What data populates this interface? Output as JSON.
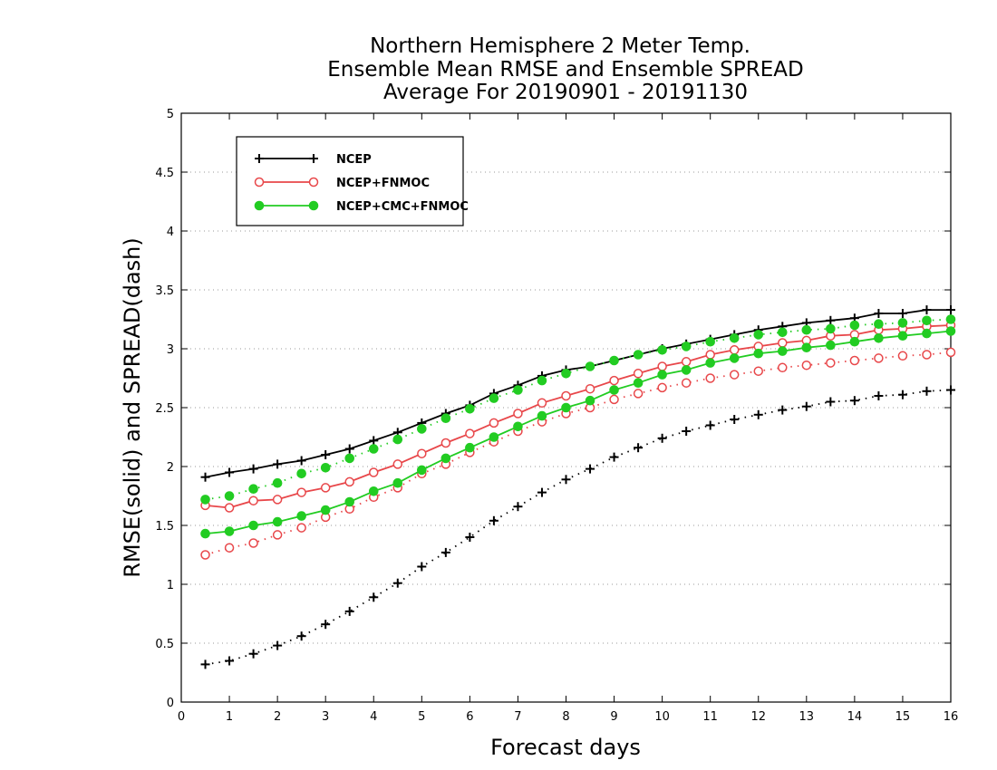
{
  "chart_data": {
    "type": "line",
    "title_lines": [
      "Northern Hemisphere 2 Meter Temp.",
      "Ensemble Mean RMSE and Ensemble SPREAD",
      "Average For 20190901 - 20191130"
    ],
    "xlabel": "Forecast days",
    "ylabel": "RMSE(solid) and SPREAD(dash)",
    "xlim": [
      0,
      16
    ],
    "ylim": [
      0,
      5
    ],
    "xticks": [
      "0",
      "1",
      "2",
      "3",
      "4",
      "5",
      "6",
      "7",
      "8",
      "9",
      "10",
      "11",
      "12",
      "13",
      "14",
      "15",
      "16"
    ],
    "yticks": [
      "0",
      "0.5",
      "1",
      "1.5",
      "2",
      "2.5",
      "3",
      "3.5",
      "4",
      "4.5",
      "5"
    ],
    "grid": "horizontal-dotted",
    "legend_position": "top-left",
    "x": [
      0.5,
      1,
      1.5,
      2,
      2.5,
      3,
      3.5,
      4,
      4.5,
      5,
      5.5,
      6,
      6.5,
      7,
      7.5,
      8,
      8.5,
      9,
      9.5,
      10,
      10.5,
      11,
      11.5,
      12,
      12.5,
      13,
      13.5,
      14,
      14.5,
      15,
      15.5,
      16
    ],
    "series": [
      {
        "name": "NCEP",
        "color": "#000000",
        "marker": "plus",
        "rmse": [
          1.91,
          1.95,
          1.98,
          2.02,
          2.05,
          2.1,
          2.15,
          2.22,
          2.29,
          2.37,
          2.45,
          2.52,
          2.62,
          2.69,
          2.77,
          2.82,
          2.85,
          2.9,
          2.95,
          3.0,
          3.04,
          3.08,
          3.12,
          3.16,
          3.19,
          3.22,
          3.24,
          3.26,
          3.3,
          3.3,
          3.33,
          3.33
        ],
        "spread": [
          0.32,
          0.35,
          0.41,
          0.48,
          0.56,
          0.66,
          0.77,
          0.89,
          1.01,
          1.15,
          1.27,
          1.4,
          1.54,
          1.66,
          1.78,
          1.89,
          1.98,
          2.08,
          2.16,
          2.24,
          2.3,
          2.35,
          2.4,
          2.44,
          2.48,
          2.51,
          2.55,
          2.56,
          2.6,
          2.61,
          2.64,
          2.65
        ]
      },
      {
        "name": "NCEP+FNMOC",
        "color": "#e8474a",
        "marker": "open-circle",
        "rmse": [
          1.67,
          1.65,
          1.71,
          1.72,
          1.78,
          1.82,
          1.87,
          1.95,
          2.02,
          2.11,
          2.2,
          2.28,
          2.37,
          2.45,
          2.54,
          2.6,
          2.66,
          2.73,
          2.79,
          2.85,
          2.89,
          2.95,
          2.99,
          3.02,
          3.05,
          3.07,
          3.11,
          3.12,
          3.16,
          3.17,
          3.19,
          3.2
        ],
        "spread": [
          1.25,
          1.31,
          1.35,
          1.42,
          1.48,
          1.57,
          1.64,
          1.74,
          1.82,
          1.94,
          2.02,
          2.12,
          2.21,
          2.3,
          2.38,
          2.45,
          2.5,
          2.57,
          2.62,
          2.67,
          2.71,
          2.75,
          2.78,
          2.81,
          2.84,
          2.86,
          2.88,
          2.9,
          2.92,
          2.94,
          2.95,
          2.97
        ]
      },
      {
        "name": "NCEP+CMC+FNMOC",
        "color": "#22cc22",
        "marker": "filled-circle",
        "rmse": [
          1.43,
          1.45,
          1.5,
          1.53,
          1.58,
          1.63,
          1.7,
          1.79,
          1.86,
          1.97,
          2.07,
          2.16,
          2.25,
          2.34,
          2.43,
          2.5,
          2.56,
          2.65,
          2.71,
          2.78,
          2.82,
          2.88,
          2.92,
          2.96,
          2.98,
          3.01,
          3.03,
          3.06,
          3.09,
          3.11,
          3.13,
          3.15
        ],
        "spread": [
          1.72,
          1.75,
          1.81,
          1.86,
          1.94,
          1.99,
          2.07,
          2.15,
          2.23,
          2.32,
          2.41,
          2.49,
          2.58,
          2.65,
          2.73,
          2.79,
          2.85,
          2.9,
          2.95,
          2.99,
          3.02,
          3.06,
          3.09,
          3.12,
          3.14,
          3.16,
          3.17,
          3.2,
          3.21,
          3.22,
          3.24,
          3.25
        ]
      }
    ]
  }
}
